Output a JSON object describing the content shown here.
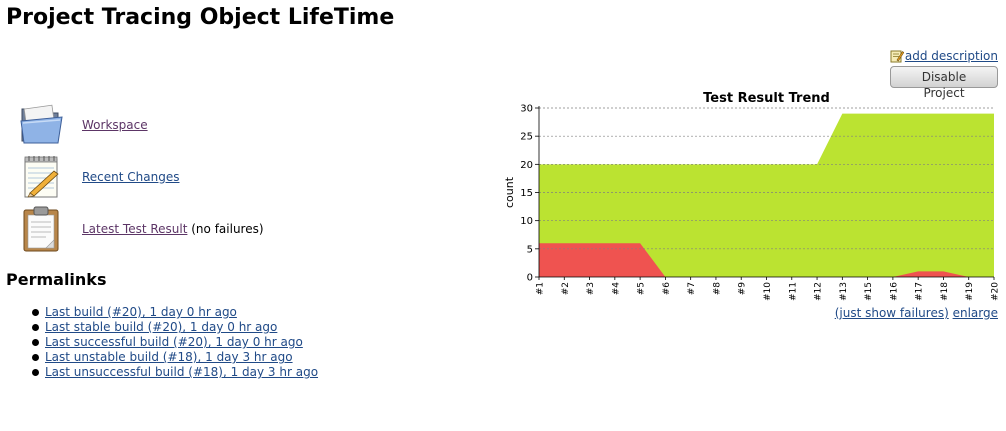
{
  "page": {
    "title": "Project Tracing Object LifeTime"
  },
  "actions": {
    "add_description": "add description",
    "disable_project": "Disable Project"
  },
  "tasks": [
    {
      "label": "Workspace",
      "icon": "folder-icon"
    },
    {
      "label": "Recent Changes",
      "icon": "notepad-icon"
    },
    {
      "label": "Latest Test Result",
      "suffix": "(no failures)",
      "icon": "clipboard-icon"
    }
  ],
  "permalinks": {
    "heading": "Permalinks",
    "items": [
      "Last build (#20), 1 day 0 hr ago",
      "Last stable build (#20), 1 day 0 hr ago",
      "Last successful build (#20), 1 day 0 hr ago",
      "Last unstable build (#18), 1 day 3 hr ago",
      "Last unsuccessful build (#18), 1 day 3 hr ago"
    ]
  },
  "chart_footer": {
    "show_failures": "(just show failures)",
    "enlarge": "enlarge"
  },
  "colors": {
    "pass": "#bbe331",
    "fail": "#ef5350",
    "link": "#204a87",
    "visited": "#5c3566"
  },
  "chart_data": {
    "type": "area",
    "title": "Test Result Trend",
    "ylabel": "count",
    "xlabel": "",
    "ylim": [
      0,
      30
    ],
    "yticks": [
      0,
      5,
      10,
      15,
      20,
      25,
      30
    ],
    "grid": true,
    "categories": [
      "#1",
      "#2",
      "#3",
      "#4",
      "#5",
      "#6",
      "#7",
      "#8",
      "#9",
      "#10",
      "#11",
      "#12",
      "#13",
      "#15",
      "#16",
      "#17",
      "#18",
      "#19",
      "#20"
    ],
    "series": [
      {
        "key": "failed",
        "values": [
          6,
          6,
          6,
          6,
          6,
          0,
          0,
          0,
          0,
          0,
          0,
          0,
          0,
          0,
          0,
          1,
          1,
          0,
          0
        ]
      },
      {
        "key": "total",
        "values": [
          20,
          20,
          20,
          20,
          20,
          20,
          20,
          20,
          20,
          20,
          20,
          20,
          29,
          29,
          29,
          29,
          29,
          29,
          29
        ]
      }
    ]
  }
}
